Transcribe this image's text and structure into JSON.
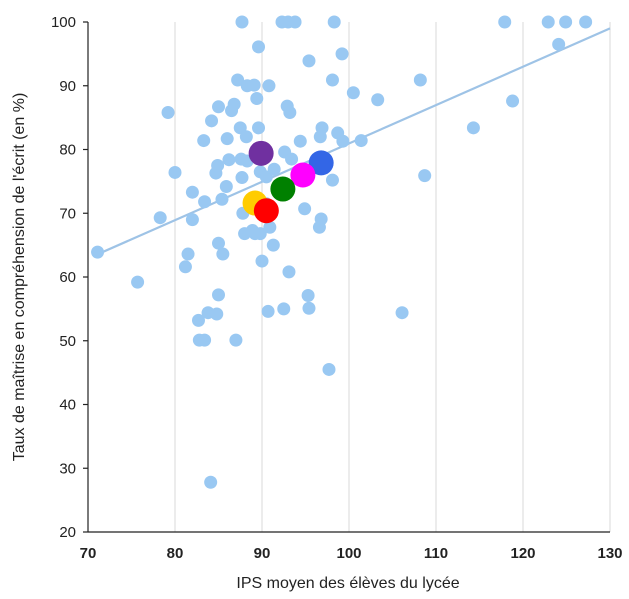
{
  "chart_data": {
    "type": "scatter",
    "title": "",
    "xlabel": "IPS moyen des élèves du lycée",
    "ylabel": "Taux de maîtrise en compréhension de l'écrit (en %)",
    "xlim": [
      70,
      130
    ],
    "ylim": [
      20,
      100
    ],
    "xticks": [
      "70",
      "80",
      "90",
      "100",
      "110",
      "120",
      "130"
    ],
    "yticks": [
      "20",
      "30",
      "40",
      "50",
      "60",
      "70",
      "80",
      "90",
      "100"
    ],
    "grid": "vertical",
    "point_color": "#99c8f2",
    "trendline": {
      "color": "#9ec3e6",
      "points": [
        [
          71,
          63.5
        ],
        [
          130,
          99
        ]
      ]
    },
    "points": [
      [
        71.1,
        63.9
      ],
      [
        75.7,
        59.2
      ],
      [
        78.3,
        69.3
      ],
      [
        79.2,
        85.8
      ],
      [
        80,
        76.4
      ],
      [
        81.2,
        61.6
      ],
      [
        81.5,
        63.6
      ],
      [
        82,
        73.3
      ],
      [
        82,
        69
      ],
      [
        82.7,
        53.2
      ],
      [
        82.8,
        50.1
      ],
      [
        83.4,
        50.1
      ],
      [
        83.3,
        81.4
      ],
      [
        83.4,
        71.8
      ],
      [
        83.8,
        54.4
      ],
      [
        84.1,
        27.8
      ],
      [
        84.2,
        84.5
      ],
      [
        84.7,
        76.3
      ],
      [
        84.8,
        54.2
      ],
      [
        84.9,
        77.5
      ],
      [
        85,
        86.7
      ],
      [
        85,
        65.3
      ],
      [
        85,
        57.2
      ],
      [
        85.5,
        63.6
      ],
      [
        85.4,
        72.2
      ],
      [
        85.9,
        74.2
      ],
      [
        86,
        81.7
      ],
      [
        86.2,
        78.4
      ],
      [
        86.5,
        86.1
      ],
      [
        86.8,
        87.1
      ],
      [
        87,
        50.1
      ],
      [
        87.2,
        90.9
      ],
      [
        87.5,
        83.4
      ],
      [
        87.7,
        100
      ],
      [
        87.6,
        78.5
      ],
      [
        87.7,
        75.6
      ],
      [
        87.8,
        70
      ],
      [
        88,
        66.8
      ],
      [
        88.3,
        90
      ],
      [
        88.2,
        82
      ],
      [
        88.3,
        78.2
      ],
      [
        88.9,
        67.3
      ],
      [
        89.1,
        90.1
      ],
      [
        89.2,
        66.8
      ],
      [
        89.4,
        88
      ],
      [
        89.6,
        83.4
      ],
      [
        89.6,
        96.1
      ],
      [
        89.8,
        76.5
      ],
      [
        89.8,
        66.8
      ],
      [
        90,
        62.5
      ],
      [
        90.5,
        71.5
      ],
      [
        90.5,
        75.7
      ],
      [
        90.7,
        54.6
      ],
      [
        90.8,
        90
      ],
      [
        90.9,
        67.8
      ],
      [
        91.3,
        65
      ],
      [
        91.4,
        76.9
      ],
      [
        92.3,
        100
      ],
      [
        92.5,
        55
      ],
      [
        92.6,
        79.6
      ],
      [
        92.9,
        86.8
      ],
      [
        93,
        100
      ],
      [
        93.1,
        60.8
      ],
      [
        93.2,
        85.8
      ],
      [
        93.4,
        78.5
      ],
      [
        93.8,
        100
      ],
      [
        94.4,
        81.3
      ],
      [
        94.9,
        70.7
      ],
      [
        95.3,
        57.1
      ],
      [
        95.4,
        93.9
      ],
      [
        95.4,
        55.1
      ],
      [
        96.6,
        67.8
      ],
      [
        96.7,
        82
      ],
      [
        96.8,
        69.1
      ],
      [
        96.9,
        83.4
      ],
      [
        97.7,
        45.5
      ],
      [
        98.1,
        90.9
      ],
      [
        98.1,
        75.2
      ],
      [
        98.3,
        100
      ],
      [
        98.7,
        82.6
      ],
      [
        99.2,
        95
      ],
      [
        99.3,
        81.3
      ],
      [
        100.5,
        88.9
      ],
      [
        101.4,
        81.4
      ],
      [
        103.3,
        87.8
      ],
      [
        106.1,
        54.4
      ],
      [
        108.2,
        90.9
      ],
      [
        108.7,
        75.9
      ],
      [
        114.3,
        83.4
      ],
      [
        117.9,
        100
      ],
      [
        118.8,
        87.6
      ],
      [
        122.9,
        100
      ],
      [
        124.1,
        96.5
      ],
      [
        124.9,
        100
      ],
      [
        127.2,
        100
      ]
    ],
    "highlights": [
      {
        "x": 89.9,
        "y": 79.4,
        "color": "#7030a0"
      },
      {
        "x": 96.8,
        "y": 77.9,
        "color": "#3366e6"
      },
      {
        "x": 94.7,
        "y": 76,
        "color": "#ff00ff"
      },
      {
        "x": 92.4,
        "y": 73.8,
        "color": "#008000"
      },
      {
        "x": 89.2,
        "y": 71.6,
        "color": "#ffcc00"
      },
      {
        "x": 90.5,
        "y": 70.4,
        "color": "#ff0000"
      }
    ]
  }
}
